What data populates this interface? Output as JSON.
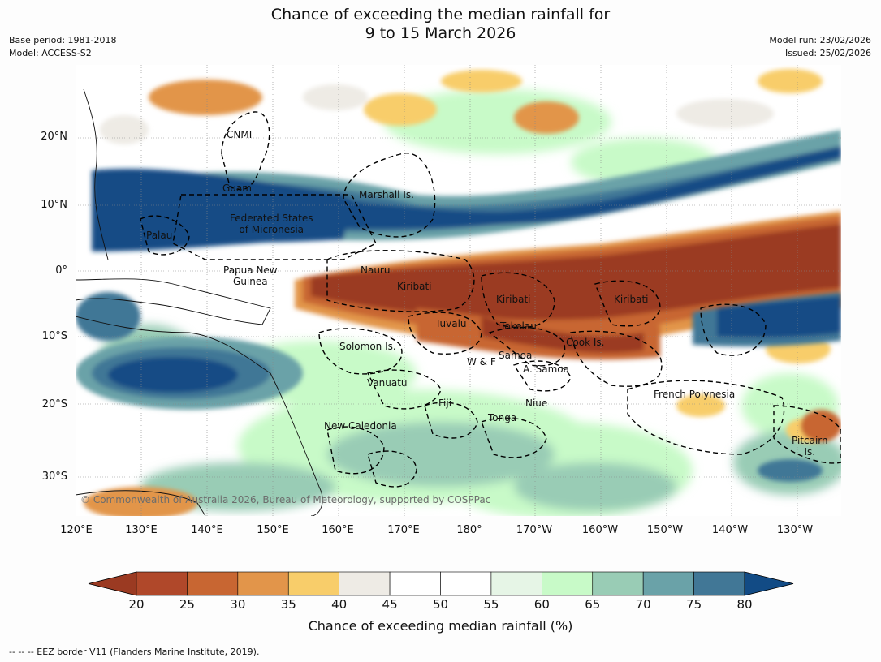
{
  "title_line1": "Chance of exceeding the median rainfall for",
  "title_line2": "9 to 15 March 2026",
  "meta_left": {
    "base_period": "Base period: 1981-2018",
    "model": "Model: ACCESS-S2"
  },
  "meta_right": {
    "model_run": "Model run: 23/02/2026",
    "issued": "Issued: 25/02/2026"
  },
  "lat_labels": [
    "20°N",
    "10°N",
    "0°",
    "10°S",
    "20°S",
    "30°S"
  ],
  "lon_labels": [
    "120°E",
    "130°E",
    "140°E",
    "150°E",
    "160°E",
    "170°E",
    "180°",
    "170°W",
    "160°W",
    "150°W",
    "140°W",
    "130°W"
  ],
  "places": [
    {
      "name": "CNMI"
    },
    {
      "name": "Guam"
    },
    {
      "name": "Marshall Is."
    },
    {
      "name": "Federated States\nof Micronesia"
    },
    {
      "name": "Palau"
    },
    {
      "name": "Papua New\nGuinea"
    },
    {
      "name": "Nauru"
    },
    {
      "name": "Kiribati"
    },
    {
      "name": "Kiribati"
    },
    {
      "name": "Kiribati"
    },
    {
      "name": "Tuvalu"
    },
    {
      "name": "Tokelau"
    },
    {
      "name": "Cook Is."
    },
    {
      "name": "Solomon Is."
    },
    {
      "name": "Samoa"
    },
    {
      "name": "W & F"
    },
    {
      "name": "A. Samoa"
    },
    {
      "name": "Vanuatu"
    },
    {
      "name": "Fiji"
    },
    {
      "name": "Niue"
    },
    {
      "name": "French Polynesia"
    },
    {
      "name": "Tonga"
    },
    {
      "name": "New Caledonia"
    },
    {
      "name": "Pitcairn\nIs."
    }
  ],
  "copyright": "© Commonwealth of Australia 2026, Bureau of Meteorology, supported by COSPPac",
  "colorbar": {
    "ticks": [
      "20",
      "25",
      "30",
      "35",
      "40",
      "45",
      "50",
      "55",
      "60",
      "65",
      "70",
      "75",
      "80"
    ],
    "colors": [
      "#9b3a22",
      "#b0482a",
      "#c86632",
      "#e2954a",
      "#f8cd6a",
      "#eeebe5",
      "#ffffff",
      "#ffffff",
      "#e6f5e6",
      "#c8fac8",
      "#99ccb5",
      "#6aa2a8",
      "#417796",
      "#124b85"
    ],
    "title": "Chance of exceeding median rainfall (%)"
  },
  "footer": "--  --  -- EEZ border V11 (Flanders Marine Institute, 2019).",
  "rainfall_field": {
    "wet_bands": [
      "West Pacific 5–20°N band (≥80%)",
      "Coral Sea 12–22°S (≥75%)",
      "Eastern Pacific 5–12°S (≥80%)"
    ],
    "dry_bands": [
      "Equatorial 0–10°S from 155°E to 125°W (≤25%)"
    ]
  }
}
